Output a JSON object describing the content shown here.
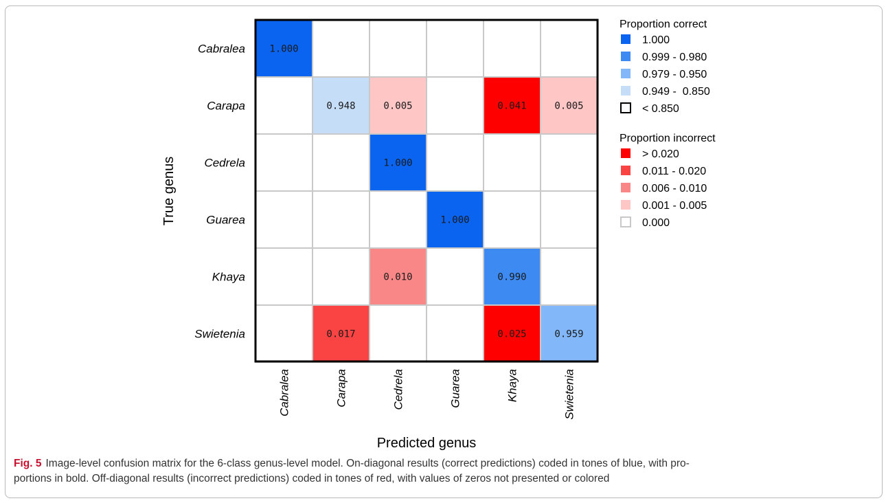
{
  "figure": {
    "label": "Fig. 5",
    "caption_line1": "Image-level confusion matrix for the 6-class genus-level model. On-diagonal results (correct predictions) coded in tones of blue, with pro-",
    "caption_line2": "portions in bold. Off-diagonal results (incorrect predictions) coded in tones of red, with values of zeros not presented or colored"
  },
  "chart_data": {
    "type": "heatmap",
    "xlabel": "Predicted genus",
    "ylabel": "True genus",
    "rows": [
      "Cabralea",
      "Carapa",
      "Cedrela",
      "Guarea",
      "Khaya",
      "Swietenia"
    ],
    "cols": [
      "Cabralea",
      "Carapa",
      "Cedrela",
      "Guarea",
      "Khaya",
      "Swietenia"
    ],
    "values": [
      [
        1.0,
        null,
        null,
        null,
        null,
        null
      ],
      [
        null,
        0.948,
        0.005,
        null,
        0.041,
        0.005
      ],
      [
        null,
        null,
        1.0,
        null,
        null,
        null
      ],
      [
        null,
        null,
        null,
        1.0,
        null,
        null
      ],
      [
        null,
        null,
        0.01,
        null,
        0.99,
        null
      ],
      [
        null,
        0.017,
        null,
        null,
        0.025,
        0.959
      ]
    ],
    "value_labels": [
      [
        "1.000",
        "",
        "",
        "",
        "",
        ""
      ],
      [
        "",
        "0.948",
        "0.005",
        "",
        "0.041",
        "0.005"
      ],
      [
        "",
        "",
        "1.000",
        "",
        "",
        ""
      ],
      [
        "",
        "",
        "",
        "1.000",
        "",
        ""
      ],
      [
        "",
        "",
        "0.010",
        "",
        "0.990",
        ""
      ],
      [
        "",
        "0.017",
        "",
        "",
        "0.025",
        "0.959"
      ]
    ],
    "legend_correct": {
      "title": "Proportion correct",
      "items": [
        {
          "label": "1.000",
          "color": "#0a64f0"
        },
        {
          "label": "0.999 - 0.980",
          "color": "#3d8bf2"
        },
        {
          "label": "0.979 - 0.950",
          "color": "#82b8fa"
        },
        {
          "label": "0.949 -  0.850",
          "color": "#c6ddf7"
        },
        {
          "label": "< 0.850",
          "color": "#ffffff",
          "outline": "#000000"
        }
      ]
    },
    "legend_incorrect": {
      "title": "Proportion incorrect",
      "items": [
        {
          "label": "> 0.020",
          "color": "#ff0000"
        },
        {
          "label": "0.011 - 0.020",
          "color": "#fa4444"
        },
        {
          "label": "0.006 - 0.010",
          "color": "#fa8787"
        },
        {
          "label": "0.001 - 0.005",
          "color": "#ffc6c6"
        },
        {
          "label": "0.000",
          "color": "#ffffff",
          "outline": "#c8c8c8"
        }
      ]
    },
    "legend_position": "right"
  }
}
